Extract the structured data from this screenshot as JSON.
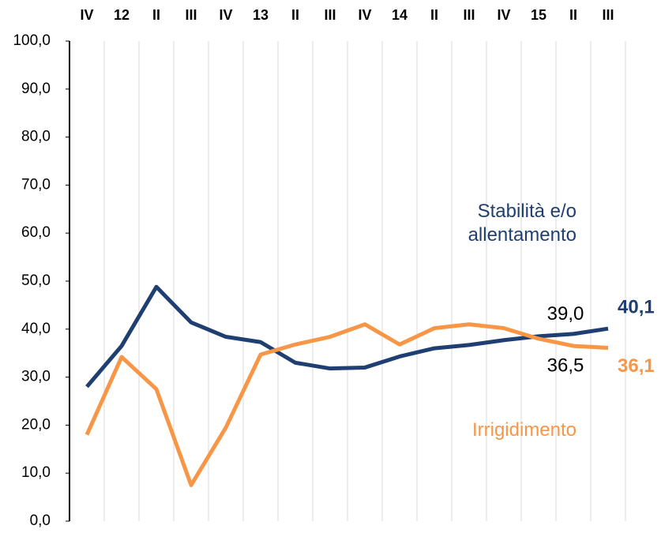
{
  "chart_data": {
    "type": "line",
    "categories": [
      "IV",
      "12",
      "II",
      "III",
      "IV",
      "13",
      "II",
      "III",
      "IV",
      "14",
      "II",
      "III",
      "IV",
      "15",
      "II",
      "III"
    ],
    "series": [
      {
        "name": "Stabilità e/o allentamento",
        "color": "#1f3f73",
        "values": [
          28.0,
          36.5,
          48.8,
          41.4,
          38.4,
          37.3,
          33.0,
          31.8,
          32.0,
          34.3,
          36.0,
          36.7,
          37.7,
          38.5,
          39.0,
          40.1
        ],
        "value_labels": [
          null,
          null,
          null,
          null,
          null,
          null,
          null,
          null,
          null,
          null,
          null,
          null,
          null,
          null,
          "39,0",
          "40,1"
        ]
      },
      {
        "name": "Irrigidimento",
        "color": "#f79646",
        "values": [
          18.0,
          34.2,
          27.5,
          7.5,
          19.5,
          34.7,
          36.8,
          38.4,
          41.0,
          36.8,
          40.2,
          41.0,
          40.2,
          38.0,
          36.5,
          36.1
        ],
        "value_labels": [
          null,
          null,
          null,
          null,
          null,
          null,
          null,
          null,
          null,
          null,
          null,
          null,
          null,
          null,
          "36,5",
          "36,1"
        ]
      }
    ],
    "ylim": [
      0,
      100
    ],
    "yticks": [
      {
        "value": 0,
        "label": "0,0"
      },
      {
        "value": 10,
        "label": "10,0"
      },
      {
        "value": 20,
        "label": "20,0"
      },
      {
        "value": 30,
        "label": "30,0"
      },
      {
        "value": 40,
        "label": "40,0"
      },
      {
        "value": 50,
        "label": "50,0"
      },
      {
        "value": 60,
        "label": "60,0"
      },
      {
        "value": 70,
        "label": "70,0"
      },
      {
        "value": 80,
        "label": "80,0"
      },
      {
        "value": 90,
        "label": "90,0"
      },
      {
        "value": 100,
        "label": "100,0"
      }
    ],
    "grid": true
  }
}
